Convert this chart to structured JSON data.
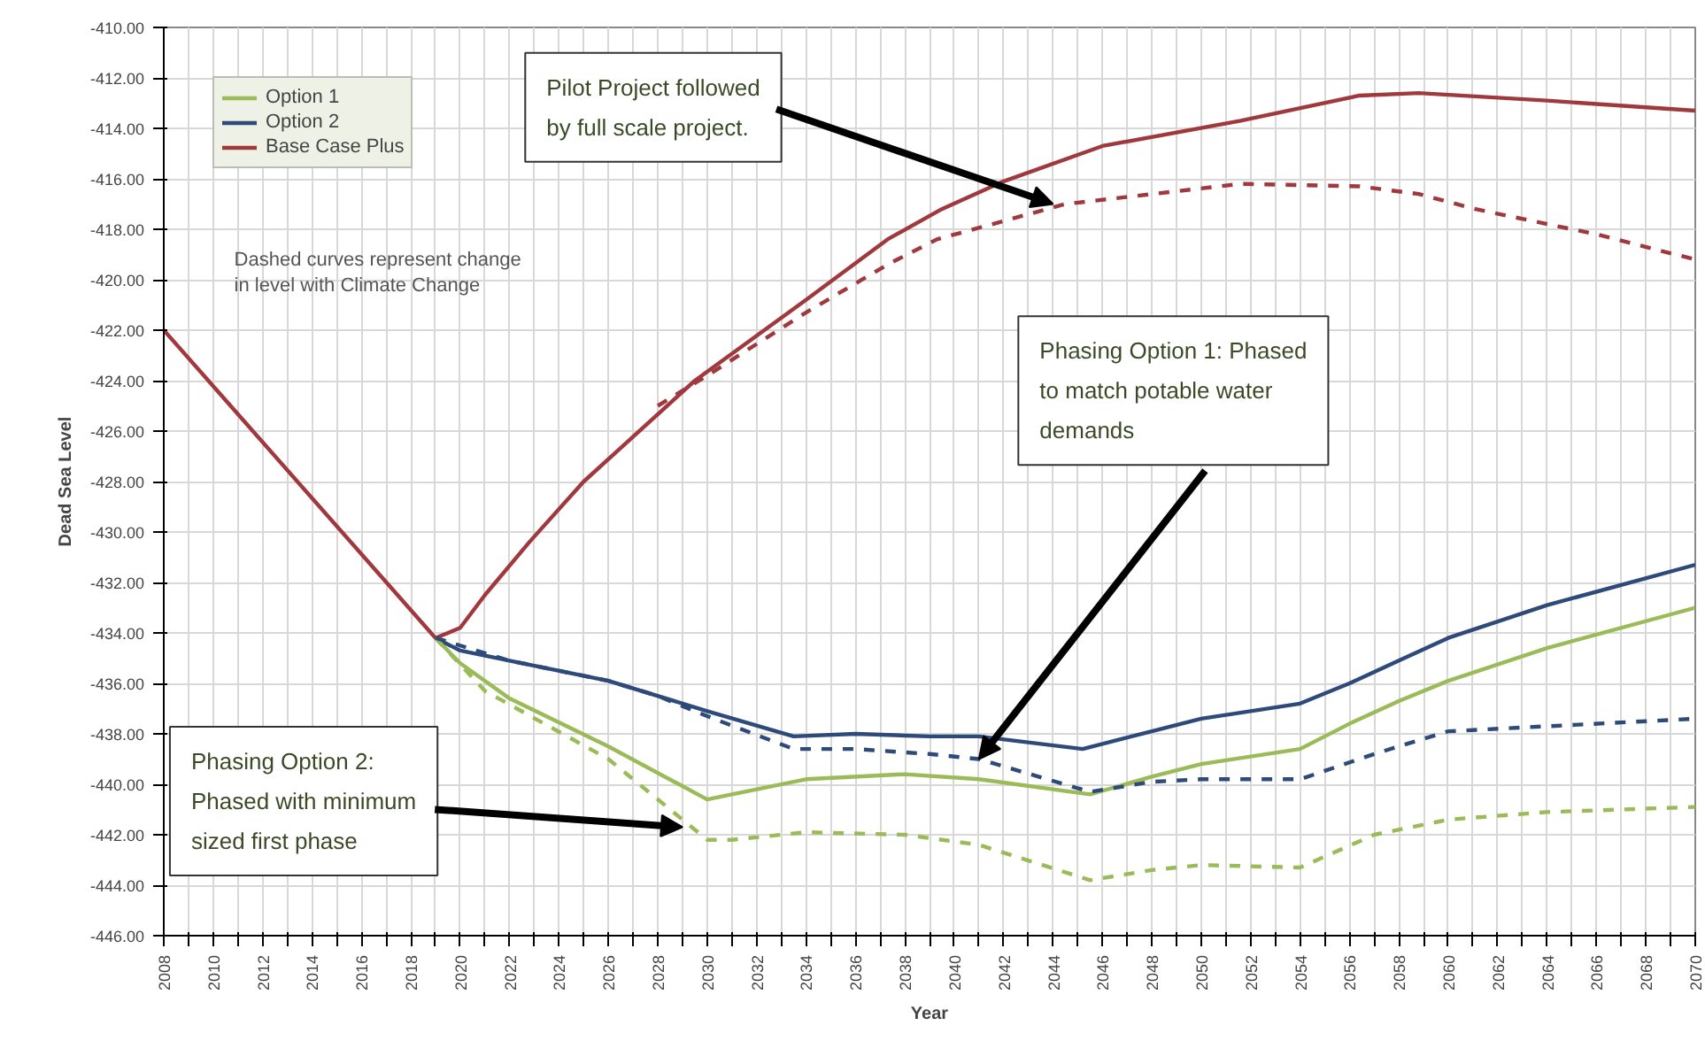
{
  "chart_data": {
    "type": "line",
    "xlabel": "Year",
    "ylabel": "Dead Sea Level",
    "xlim": [
      2008,
      2070
    ],
    "ylim": [
      -446,
      -410
    ],
    "xticks": [
      2008,
      {
        "value": 2009,
        "label": null
      },
      2010,
      {
        "value": 2011,
        "label": null
      },
      2012,
      {
        "value": 2013,
        "label": null
      },
      2014,
      {
        "value": 2015,
        "label": null
      },
      2016,
      {
        "value": 2017,
        "label": null
      },
      2018,
      {
        "value": 2019,
        "label": null
      },
      2020,
      {
        "value": 2021,
        "label": null
      },
      2022,
      {
        "value": 2023,
        "label": null
      },
      2024,
      {
        "value": 2025,
        "label": null
      },
      2026,
      {
        "value": 2027,
        "label": null
      },
      2028,
      {
        "value": 2029,
        "label": null
      },
      2030,
      {
        "value": 2031,
        "label": null
      },
      2032,
      {
        "value": 2033,
        "label": null
      },
      2034,
      {
        "value": 2035,
        "label": null
      },
      2036,
      {
        "value": 2037,
        "label": null
      },
      2038,
      {
        "value": 2039,
        "label": null
      },
      2040,
      {
        "value": 2041,
        "label": null
      },
      2042,
      {
        "value": 2043,
        "label": null
      },
      2044,
      {
        "value": 2045,
        "label": null
      },
      2046,
      {
        "value": 2047,
        "label": null
      },
      2048,
      {
        "value": 2049,
        "label": null
      },
      2050,
      {
        "value": 2051,
        "label": null
      },
      2052,
      {
        "value": 2053,
        "label": null
      },
      2054,
      {
        "value": 2055,
        "label": null
      },
      2056,
      {
        "value": 2057,
        "label": null
      },
      2058,
      {
        "value": 2059,
        "label": null
      },
      2060,
      {
        "value": 2061,
        "label": null
      },
      2062,
      {
        "value": 2063,
        "label": null
      },
      2064,
      {
        "value": 2065,
        "label": null
      },
      2066,
      {
        "value": 2067,
        "label": null
      },
      2068,
      {
        "value": 2069,
        "label": null
      },
      2070
    ],
    "yticks": [
      {
        "value": -446,
        "label": "-446.00"
      },
      {
        "value": -444,
        "label": "-444.00"
      },
      {
        "value": -442,
        "label": "-442.00"
      },
      {
        "value": -440,
        "label": "-440.00"
      },
      {
        "value": -438,
        "label": "-438.00"
      },
      {
        "value": -436,
        "label": "-436.00"
      },
      {
        "value": -434,
        "label": "-434.00"
      },
      {
        "value": -432,
        "label": "-432.00"
      },
      {
        "value": -430,
        "label": "-430.00"
      },
      {
        "value": -428,
        "label": "-428.00"
      },
      {
        "value": -426,
        "label": "-426.00"
      },
      {
        "value": -424,
        "label": "-424.00"
      },
      {
        "value": -422,
        "label": "-422.00"
      },
      {
        "value": -420,
        "label": "-420.00"
      },
      {
        "value": -418,
        "label": "-418.00"
      },
      {
        "value": -416,
        "label": "-416.00"
      },
      {
        "value": -414,
        "label": "-414.00"
      },
      {
        "value": -412,
        "label": "-412.00"
      },
      {
        "value": -410,
        "label": "-410.00"
      }
    ],
    "grid": true,
    "legend": "top left",
    "series": [
      {
        "name": "Option 1",
        "color": "#9bbb59",
        "line_style": "solid",
        "x": [
          2019,
          2020,
          2022,
          2026,
          2030,
          2031,
          2034,
          2038,
          2041,
          2045.5,
          2048,
          2050,
          2054,
          2056,
          2058,
          2060,
          2064,
          2070
        ],
        "values": [
          -434.2,
          -435.2,
          -436.6,
          -438.5,
          -440.6,
          -440.4,
          -439.8,
          -439.6,
          -439.8,
          -440.4,
          -439.7,
          -439.2,
          -438.6,
          -437.6,
          -436.7,
          -435.9,
          -434.6,
          -433.0
        ]
      },
      {
        "name": "Option 2",
        "color": "#2e4a7a",
        "line_style": "solid",
        "x": [
          2019,
          2020,
          2022,
          2026,
          2030,
          2033.5,
          2036,
          2039,
          2041,
          2045.2,
          2048,
          2050,
          2054,
          2056,
          2058,
          2060,
          2064,
          2070
        ],
        "values": [
          -434.2,
          -434.7,
          -435.1,
          -435.9,
          -437.1,
          -438.1,
          -438.0,
          -438.1,
          -438.1,
          -438.6,
          -437.9,
          -437.4,
          -436.8,
          -436.0,
          -435.1,
          -434.2,
          -432.9,
          -431.3
        ]
      },
      {
        "name": "Base Case Plus",
        "color": "#a0393e",
        "line_style": "solid",
        "x": [
          2008,
          2019,
          2020,
          2021,
          2022.8,
          2025,
          2029.5,
          2034,
          2037.3,
          2039.5,
          2042,
          2046,
          2051.6,
          2056.4,
          2058.8,
          2064,
          2070
        ],
        "values": [
          -422,
          -434.2,
          -433.8,
          -432.5,
          -430.4,
          -428.0,
          -424.0,
          -420.8,
          -418.4,
          -417.2,
          -416.1,
          -414.7,
          -413.7,
          -412.7,
          -412.6,
          -412.9,
          -413.3
        ]
      },
      {
        "color": "#9bbb59",
        "line_style": "dashed",
        "x": [
          2019,
          2021,
          2026,
          2030,
          2031,
          2034,
          2038,
          2041,
          2045.5,
          2048,
          2050,
          2054,
          2057,
          2060,
          2064,
          2070
        ],
        "values": [
          -434.2,
          -436.3,
          -439.0,
          -442.2,
          -442.2,
          -441.9,
          -442.0,
          -442.4,
          -443.8,
          -443.4,
          -443.2,
          -443.3,
          -442.0,
          -441.4,
          -441.1,
          -440.9
        ]
      },
      {
        "color": "#2e4a7a",
        "line_style": "dashed",
        "x": [
          2019,
          2022,
          2026,
          2028,
          2030,
          2033.5,
          2036,
          2039,
          2041,
          2045.5,
          2048,
          2050,
          2054,
          2057,
          2060,
          2064,
          2070
        ],
        "values": [
          -434.2,
          -435.1,
          -435.9,
          -436.5,
          -437.3,
          -438.6,
          -438.6,
          -438.8,
          -439.0,
          -440.3,
          -439.9,
          -439.8,
          -439.8,
          -438.8,
          -437.9,
          -437.7,
          -437.4
        ]
      },
      {
        "color": "#a0393e",
        "line_style": "dashed",
        "x": [
          2028,
          2030,
          2034,
          2037.3,
          2039.3,
          2044.5,
          2051.6,
          2056.4,
          2058.8,
          2061.1,
          2066,
          2070
        ],
        "values": [
          -425.0,
          -423.8,
          -421.3,
          -419.4,
          -418.4,
          -417.0,
          -416.2,
          -416.3,
          -416.6,
          -417.2,
          -418.2,
          -419.2
        ]
      }
    ],
    "annotations": [
      {
        "text": "Pilot Project followed by full scale project.",
        "x": 2044,
        "y": -417
      },
      {
        "text": "Phasing Option 1: Phased to match potable water demands",
        "x": 2041,
        "y": -439
      },
      {
        "text": "Phasing Option 2: Phased with minimum sized first phase",
        "x": 2029,
        "y": -441.7
      },
      "Dashed curves represent change in level with Climate Change"
    ]
  }
}
